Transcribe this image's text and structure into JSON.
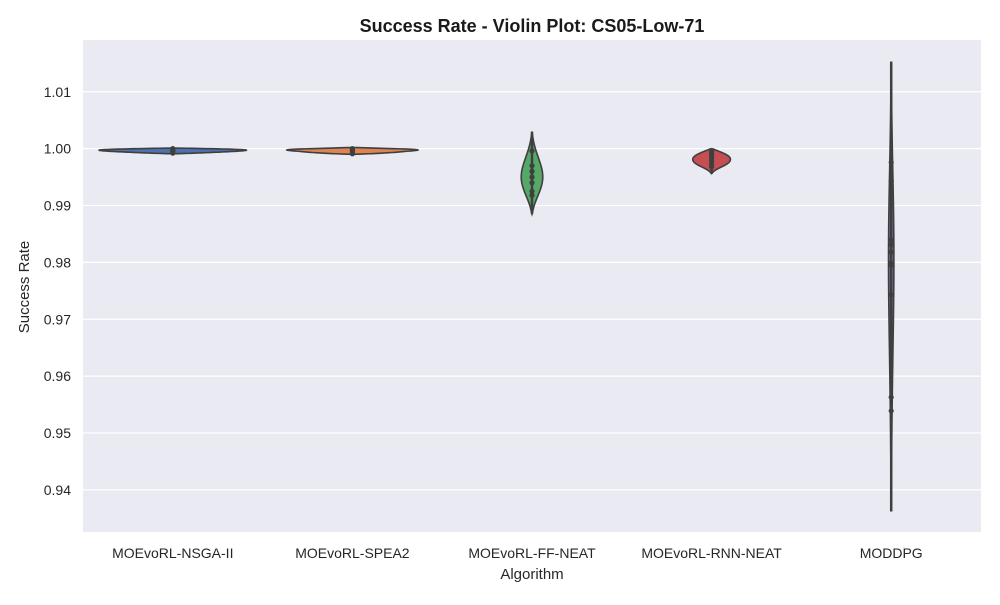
{
  "chart_data": {
    "type": "violin",
    "title": "Success Rate - Violin Plot: CS05-Low-71",
    "xlabel": "Algorithm",
    "ylabel": "Success Rate",
    "categories": [
      "MOEvoRL-NSGA-II",
      "MOEvoRL-SPEA2",
      "MOEvoRL-FF-NEAT",
      "MOEvoRL-RNN-NEAT",
      "MODDPG"
    ],
    "yticks": [
      0.94,
      0.95,
      0.96,
      0.97,
      0.98,
      0.99,
      1.0,
      1.01
    ],
    "ytick_labels": [
      "0.94",
      "0.95",
      "0.96",
      "0.97",
      "0.98",
      "0.99",
      "1.00",
      "1.01"
    ],
    "ylim": [
      0.9326,
      1.0191
    ],
    "grid": true,
    "background": "#eaeaf2",
    "series": [
      {
        "category": "MOEvoRL-NSGA-II",
        "color": "#4c72b0",
        "points": [
          0.9992,
          0.9995,
          0.9997,
          0.9999,
          1.0
        ],
        "violin_range": [
          0.9991,
          1.0001
        ],
        "max_width": 0.82
      },
      {
        "category": "MOEvoRL-SPEA2",
        "color": "#dd8452",
        "points": [
          0.9991,
          0.9994,
          0.9997,
          0.9999,
          1.0
        ],
        "violin_range": [
          0.999,
          1.0002
        ],
        "max_width": 0.73
      },
      {
        "category": "MOEvoRL-FF-NEAT",
        "color": "#55a868",
        "points": [
          0.9918,
          0.9925,
          0.994,
          0.995,
          0.996,
          0.997,
          0.9996
        ],
        "violin_range": [
          0.9885,
          1.003
        ],
        "max_width": 0.12
      },
      {
        "category": "MOEvoRL-RNN-NEAT",
        "color": "#c44e52",
        "points": [
          0.9968,
          0.9973,
          0.9978,
          0.9983,
          0.9988,
          0.9992,
          0.9996
        ],
        "violin_range": [
          0.9956,
          1.0
        ],
        "max_width": 0.21
      },
      {
        "category": "MODDPG",
        "color": "#8172b3",
        "points": [
          0.9539,
          0.9563,
          0.9743,
          0.9795,
          0.9799,
          0.9818,
          0.9831,
          0.9839,
          0.9943,
          0.9976
        ],
        "violin_range": [
          0.9362,
          1.0153
        ],
        "max_width": 0.03
      }
    ]
  }
}
